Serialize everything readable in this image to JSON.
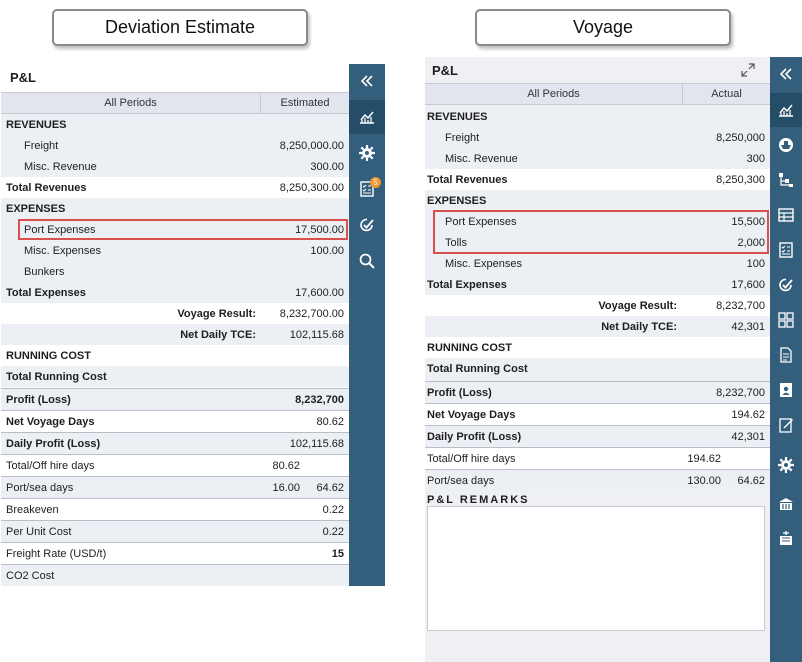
{
  "captions": {
    "left": "Deviation Estimate",
    "right": "Voyage"
  },
  "left_panel": {
    "title": "P&L",
    "col_period": "All Periods",
    "col_value": "Estimated",
    "rows": [
      {
        "label": "REVENUES",
        "value": "",
        "type": "section"
      },
      {
        "label": "Freight",
        "value": "8,250,000.00",
        "type": "item"
      },
      {
        "label": "Misc. Revenue",
        "value": "300.00",
        "type": "item"
      },
      {
        "label": "Total Revenues",
        "value": "8,250,300.00",
        "type": "total"
      },
      {
        "label": "EXPENSES",
        "value": "",
        "type": "section"
      },
      {
        "label": "Port Expenses",
        "value": "17,500.00",
        "type": "item"
      },
      {
        "label": "Misc. Expenses",
        "value": "100.00",
        "type": "item"
      },
      {
        "label": "Bunkers",
        "value": "",
        "type": "item"
      },
      {
        "label": "Total Expenses",
        "value": "17,600.00",
        "type": "total"
      },
      {
        "label": "Voyage Result:",
        "value": "8,232,700.00",
        "type": "result"
      },
      {
        "label": "Net Daily TCE:",
        "value": "102,115.68",
        "type": "result"
      },
      {
        "label": "RUNNING COST",
        "value": "",
        "type": "section"
      },
      {
        "label": "Total Running Cost",
        "value": "",
        "type": "total"
      }
    ],
    "summary": [
      {
        "label": "Profit (Loss)",
        "value": "8,232,700",
        "bold": true,
        "vbold": true
      },
      {
        "label": "Net Voyage Days",
        "value": "80.62",
        "bold": true
      },
      {
        "label": "Daily Profit (Loss)",
        "value": "102,115.68",
        "bold": true
      },
      {
        "label": "Total/Off hire days",
        "mid": "80.62",
        "value": ""
      },
      {
        "label": "Port/sea days",
        "mid": "16.00",
        "value": "64.62"
      },
      {
        "label": "Breakeven",
        "value": "0.22"
      },
      {
        "label": "Per Unit Cost",
        "value": "0.22"
      },
      {
        "label": "Freight Rate (USD/t)",
        "value": "15",
        "vbold": true
      },
      {
        "label": "CO2 Cost",
        "value": ""
      }
    ]
  },
  "right_panel": {
    "title": "P&L",
    "expand_icon": "expand-icon",
    "col_period": "All Periods",
    "col_value": "Actual",
    "rows": [
      {
        "label": "REVENUES",
        "value": "",
        "type": "section"
      },
      {
        "label": "Freight",
        "value": "8,250,000",
        "type": "item"
      },
      {
        "label": "Misc. Revenue",
        "value": "300",
        "type": "item"
      },
      {
        "label": "Total Revenues",
        "value": "8,250,300",
        "type": "total"
      },
      {
        "label": "EXPENSES",
        "value": "",
        "type": "section"
      },
      {
        "label": "Port Expenses",
        "value": "15,500",
        "type": "item"
      },
      {
        "label": "Tolls",
        "value": "2,000",
        "type": "item"
      },
      {
        "label": "Misc. Expenses",
        "value": "100",
        "type": "item"
      },
      {
        "label": "Total Expenses",
        "value": "17,600",
        "type": "total"
      },
      {
        "label": "Voyage Result:",
        "value": "8,232,700",
        "type": "result"
      },
      {
        "label": "Net Daily TCE:",
        "value": "42,301",
        "type": "result"
      },
      {
        "label": "RUNNING COST",
        "value": "",
        "type": "section"
      },
      {
        "label": "Total Running Cost",
        "value": "",
        "type": "total"
      }
    ],
    "summary": [
      {
        "label": "Profit (Loss)",
        "value": "8,232,700",
        "bold": true
      },
      {
        "label": "Net Voyage Days",
        "value": "194.62",
        "bold": true
      },
      {
        "label": "Daily Profit (Loss)",
        "value": "42,301",
        "bold": true
      },
      {
        "label": "Total/Off hire days",
        "mid": "194.62",
        "value": ""
      },
      {
        "label": "Port/sea days",
        "mid": "130.00",
        "value": "64.62"
      }
    ],
    "remarks_title": "P&L REMARKS",
    "remarks_text": ""
  },
  "sidebar_left": [
    "collapse-icon",
    "chart-icon",
    "gear-icon",
    "checklist-icon",
    "edit-check-icon",
    "search-icon"
  ],
  "sidebar_left_badge": "5",
  "sidebar_right": [
    "collapse-icon",
    "chart-icon",
    "ship-icon",
    "hierarchy-icon",
    "table-icon",
    "checklist-icon",
    "edit-check-icon",
    "grid-icon",
    "document-icon",
    "contact-icon",
    "note-icon",
    "gear-icon",
    "terminal-icon",
    "port-icon"
  ],
  "colors": {
    "sidebar": "#335f7d",
    "highlight": "#d9504f",
    "shade": "#eceff3"
  }
}
